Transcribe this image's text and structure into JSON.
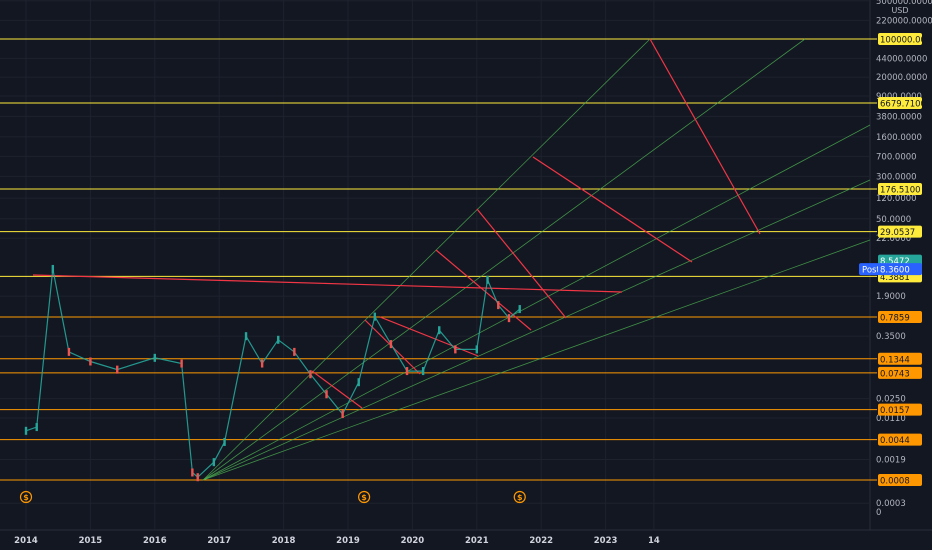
{
  "chart_data": {
    "type": "line",
    "currency_label": "USD",
    "y_scale": "log",
    "y_ticks": [
      "500000.0000",
      "220000.0000",
      "44000.0000",
      "20000.0000",
      "9000.0000",
      "3800.0000",
      "1600.0000",
      "700.0000",
      "300.0000",
      "120.0000",
      "50.0000",
      "22.0000",
      "1.9000",
      "0.3500",
      "0.0250",
      "0.0110",
      "0.0019",
      "0.0003",
      "0"
    ],
    "x_ticks": [
      "2014",
      "2015",
      "2016",
      "2017",
      "2018",
      "2019",
      "2020",
      "2021",
      "2022",
      "2023",
      "14"
    ],
    "horizontal_levels": [
      {
        "label": "100000.0000",
        "value": 100000,
        "color": "#ffeb3b"
      },
      {
        "label": "6679.7100",
        "value": 6679.71,
        "color": "#ffeb3b"
      },
      {
        "label": "176.5100",
        "value": 176.51,
        "color": "#ffeb3b"
      },
      {
        "label": "29.0537",
        "value": 29.0537,
        "color": "#ffeb3b"
      },
      {
        "label": "4.3881",
        "value": 4.3881,
        "color": "#ffeb3b"
      },
      {
        "label": "0.7859",
        "value": 0.7859,
        "color": "#ff9800"
      },
      {
        "label": "0.1344",
        "value": 0.1344,
        "color": "#ff9800"
      },
      {
        "label": "0.0743",
        "value": 0.0743,
        "color": "#ff9800"
      },
      {
        "label": "0.0157",
        "value": 0.0157,
        "color": "#ff9800"
      },
      {
        "label": "0.0044",
        "value": 0.0044,
        "color": "#ff9800"
      },
      {
        "label": "0.0008",
        "value": 0.0008,
        "color": "#ff9800"
      }
    ],
    "last_price": {
      "label": "8.5472",
      "value": 8.5472,
      "color": "#26a69a"
    },
    "post_price": {
      "prefix": "Post",
      "label": "8.3600",
      "value": 8.36,
      "color": "#2962ff"
    },
    "dividend_marker": "$",
    "price_series": {
      "x": [
        "2014-01",
        "2014-03",
        "2014-06",
        "2014-09",
        "2015-01",
        "2015-06",
        "2016-01",
        "2016-06",
        "2016-08",
        "2016-09",
        "2016-12",
        "2017-02",
        "2017-06",
        "2017-09",
        "2017-12",
        "2018-03",
        "2018-06",
        "2018-09",
        "2018-12",
        "2019-03",
        "2019-06",
        "2019-09",
        "2019-12",
        "2020-03",
        "2020-06",
        "2020-09",
        "2021-01",
        "2021-03",
        "2021-05",
        "2021-07",
        "2021-09"
      ],
      "y": [
        0.0064,
        0.0075,
        6.0,
        0.18,
        0.12,
        0.085,
        0.14,
        0.11,
        0.0011,
        0.0009,
        0.0017,
        0.004,
        0.35,
        0.11,
        0.3,
        0.18,
        0.07,
        0.03,
        0.013,
        0.05,
        0.8,
        0.25,
        0.08,
        0.08,
        0.45,
        0.2,
        0.2,
        3.8,
        1.3,
        0.75,
        1.1
      ]
    },
    "fan_lines": {
      "origin": [
        "2016-10",
        0.0008
      ],
      "through": [
        [
          "2021-11",
          100000
        ],
        [
          "2021-11",
          6679.71
        ],
        [
          "2021-11",
          176.51
        ],
        [
          "2021-11",
          29.0537
        ],
        [
          "2021-11",
          4.3881
        ]
      ],
      "color": "#4caf50"
    },
    "trend_lines": {
      "color": "#f23645"
    },
    "colors": {
      "background": "#131722",
      "up": "#26a69a",
      "down": "#ef5350"
    }
  }
}
